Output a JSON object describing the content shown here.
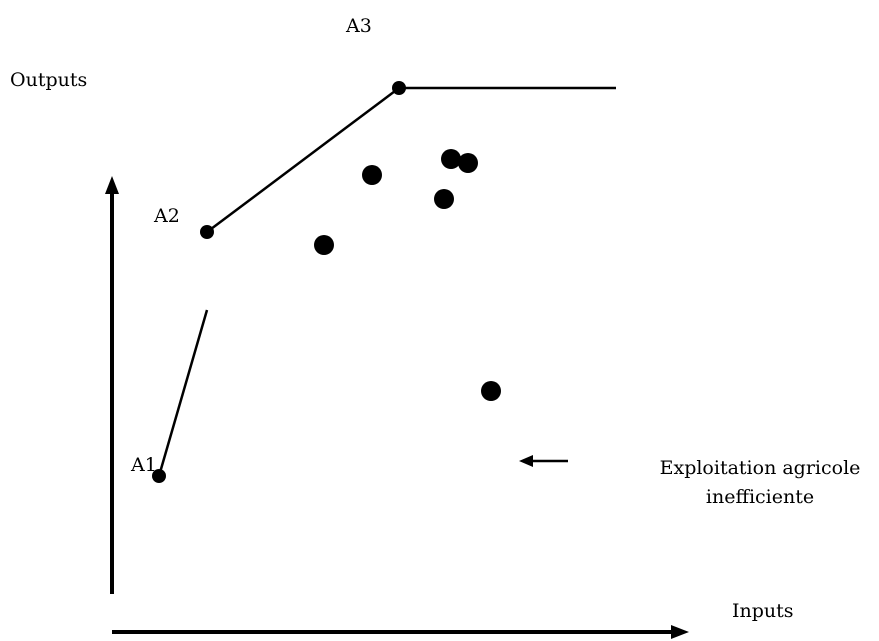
{
  "labels": {
    "y_axis": "Outputs",
    "x_axis": "Inputs",
    "a1": "A1",
    "a2": "A2",
    "a3": "A3",
    "annotation_line1": "Exploitation agricole",
    "annotation_line2": "inefficiente"
  },
  "colors": {
    "ink": "#000000",
    "background": "#ffffff"
  }
}
